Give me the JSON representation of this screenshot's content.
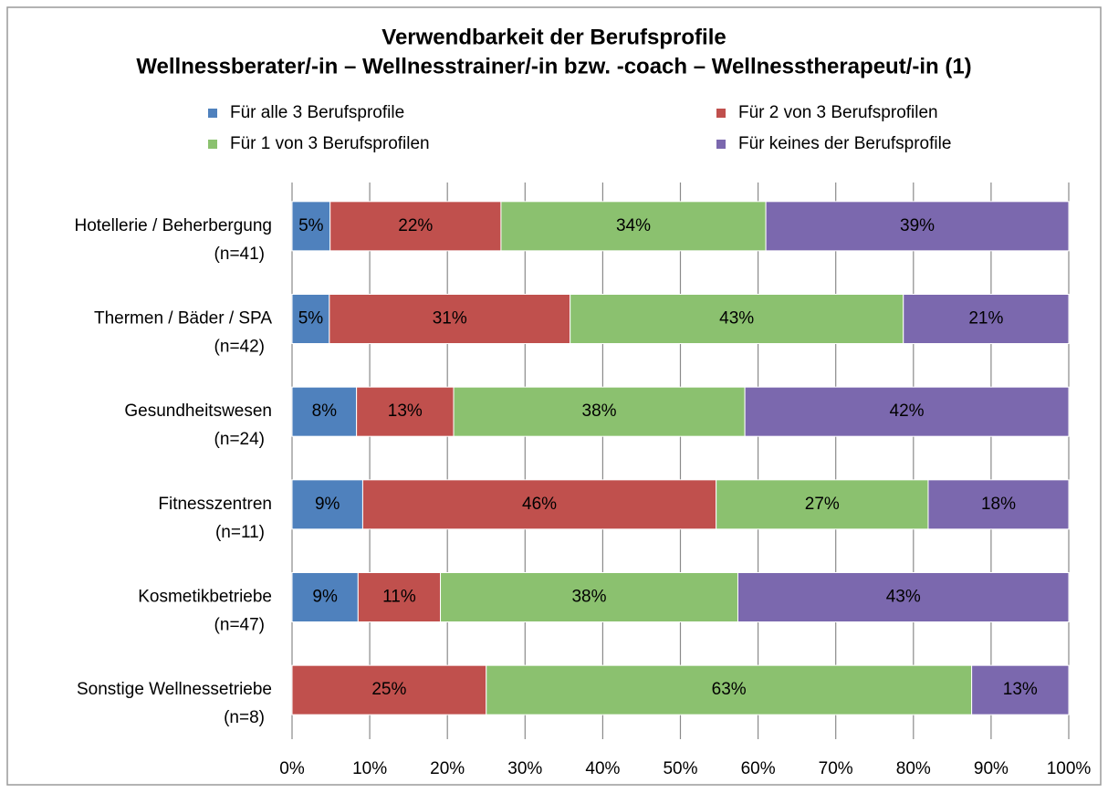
{
  "chart_data": {
    "type": "stacked_bar_horizontal",
    "title": "Verwendbarkeit der Berufsprofile",
    "subtitle": "Wellnessberater/-in – Wellnesstrainer/-in bzw. -coach – Wellnesstherapeut/-in  (1)",
    "categories": [
      [
        "Hotellerie / Beherbergung",
        "(n=41)"
      ],
      [
        "Thermen / Bäder /  SPA",
        "(n=42)"
      ],
      [
        "Gesundheitswesen",
        "(n=24)"
      ],
      [
        "Fitnesszentren",
        "(n=11)"
      ],
      [
        "Kosmetikbetriebe",
        "(n=47)"
      ],
      [
        "Sonstige Wellnessetriebe",
        "(n=8)"
      ]
    ],
    "series": [
      {
        "name": "Für alle 3 Berufsprofile",
        "color": "#4f81bd",
        "label_color": "#ffffff",
        "values": [
          4.9,
          4.8,
          8.3,
          9.1,
          8.5,
          0
        ],
        "value_labels": [
          "5%",
          "5%",
          "8%",
          "9%",
          "9%",
          null
        ]
      },
      {
        "name": "Für 2 von 3 Berufsprofilen",
        "color": "#c0504d",
        "label_color": "#ffffff",
        "values": [
          22,
          31,
          12.5,
          45.5,
          10.6,
          25
        ],
        "value_labels": [
          "22%",
          "31%",
          "13%",
          "46%",
          "11%",
          "25%"
        ]
      },
      {
        "name": "Für 1 von 3 Berufsprofilen",
        "color": "#8bc16f",
        "label_color": "#000000",
        "values": [
          34.1,
          42.9,
          37.5,
          27.3,
          38.3,
          62.5
        ],
        "value_labels": [
          "34%",
          "43%",
          "38%",
          "27%",
          "38%",
          "63%"
        ]
      },
      {
        "name": "Für keines der Berufsprofile",
        "color": "#7b68ae",
        "label_color": "#ffffff",
        "values": [
          39,
          21.3,
          41.7,
          18.1,
          42.6,
          12.5
        ],
        "value_labels": [
          "39%",
          "21%",
          "42%",
          "18%",
          "43%",
          "13%"
        ]
      }
    ],
    "xlim": [
      0,
      100
    ],
    "xticks": [
      {
        "value": 0,
        "label": "0%"
      },
      {
        "value": 10,
        "label": "10%"
      },
      {
        "value": 20,
        "label": "20%"
      },
      {
        "value": 30,
        "label": "30%"
      },
      {
        "value": 40,
        "label": "40%"
      },
      {
        "value": 50,
        "label": "50%"
      },
      {
        "value": 60,
        "label": "60%"
      },
      {
        "value": 70,
        "label": "70%"
      },
      {
        "value": 80,
        "label": "80%"
      },
      {
        "value": 90,
        "label": "90%"
      },
      {
        "value": 100,
        "label": "100%"
      }
    ],
    "grid": true,
    "legend": "top"
  }
}
